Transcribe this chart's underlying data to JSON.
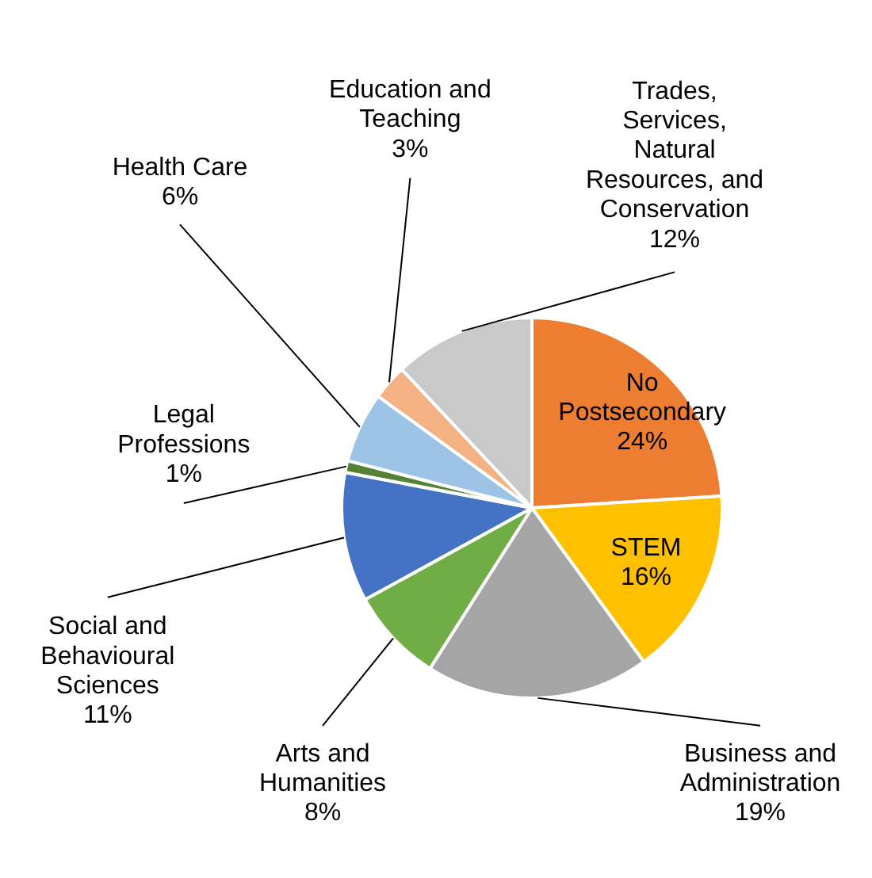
{
  "chart_data": {
    "type": "pie",
    "value_labels": [
      "24%",
      "16%",
      "19%",
      "8%",
      "11%",
      "1%",
      "6%",
      "3%",
      "12%"
    ],
    "categories": [
      "No Postsecondary",
      "STEM",
      "Business and Administration",
      "Arts and Humanities",
      "Social and Behavioural Sciences",
      "Legal Professions",
      "Health Care",
      "Education and Teaching",
      "Trades, Services, Natural Resources, and Conservation"
    ],
    "values": [
      24,
      16,
      19,
      8,
      11,
      1,
      6,
      3,
      12
    ],
    "colors": [
      "#ed7d31",
      "#ffc000",
      "#a5a5a5",
      "#70ad47",
      "#4472c4",
      "#548235",
      "#9dc3e6",
      "#f4b183",
      "#c9c9c9"
    ]
  }
}
